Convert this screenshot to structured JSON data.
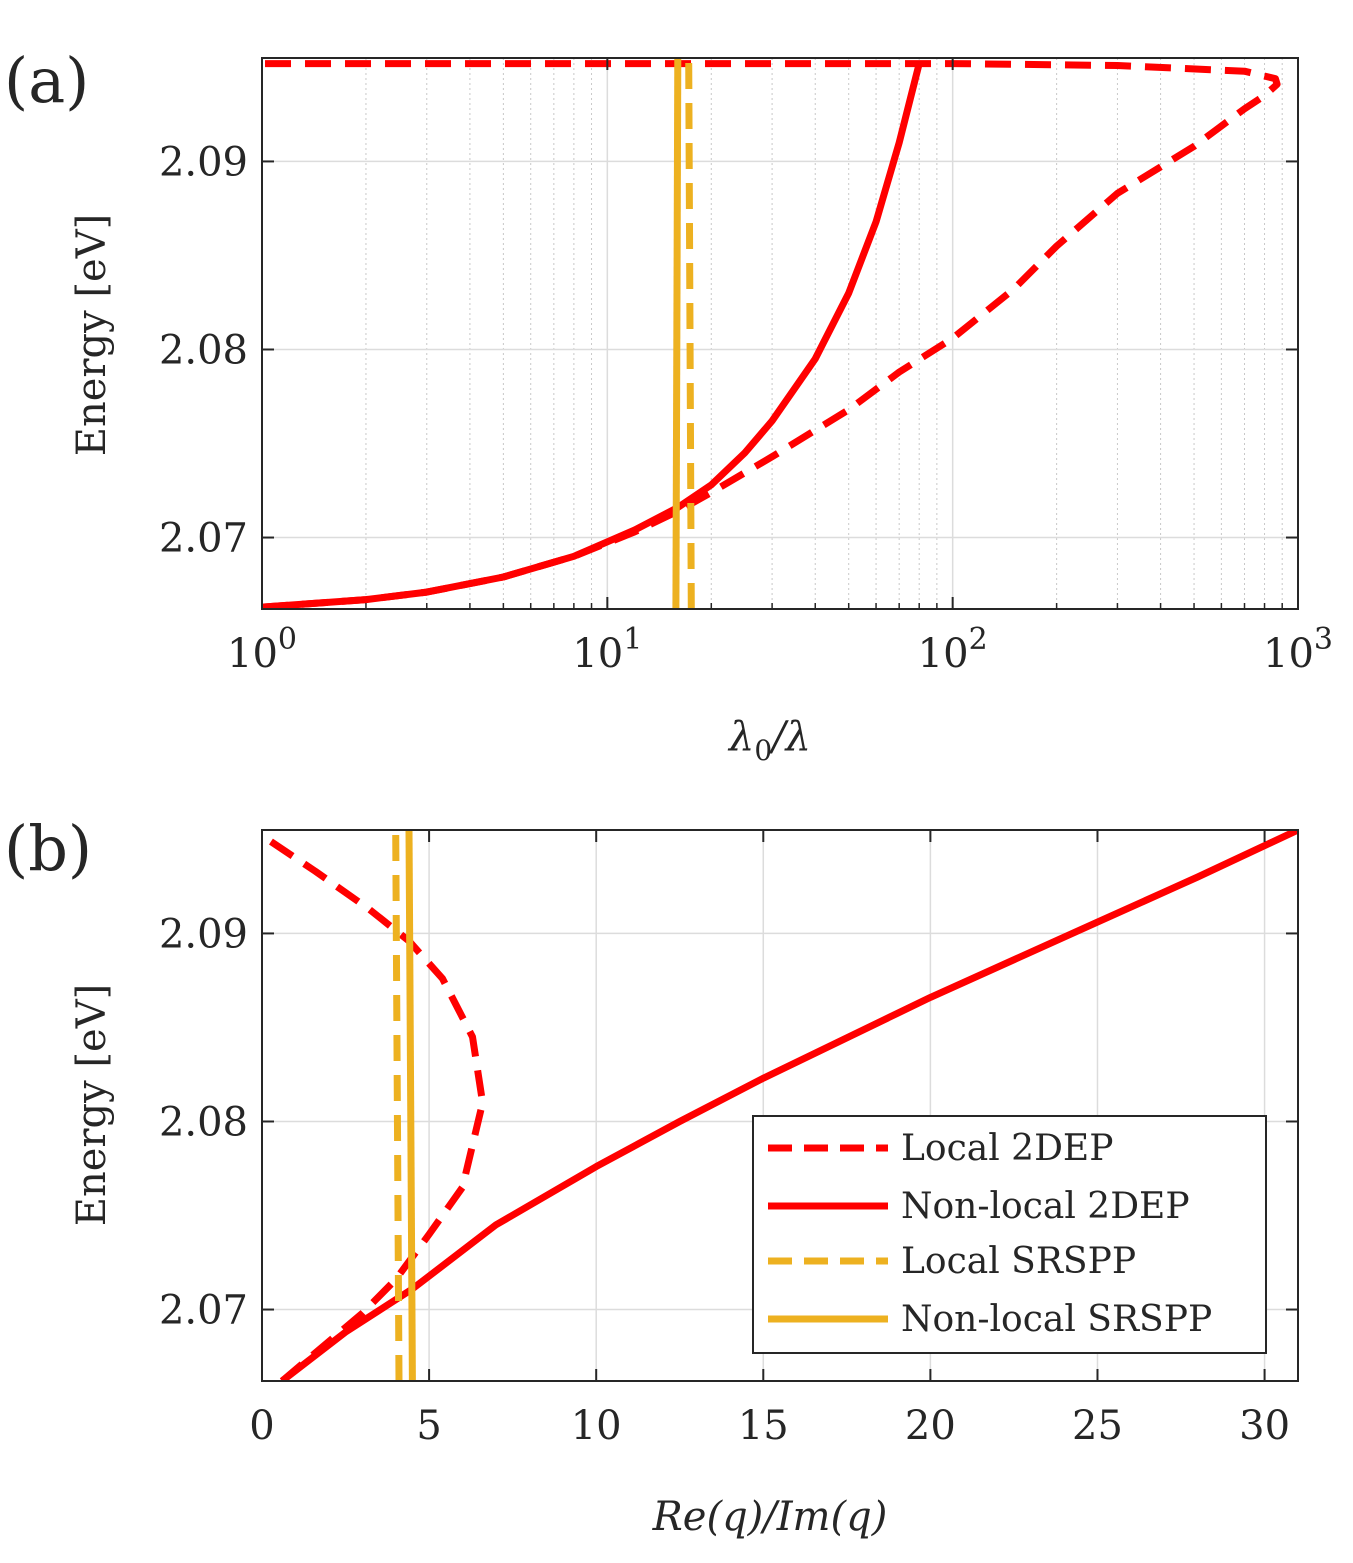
{
  "figure_labels": {
    "a": "(a)",
    "b": "(b)"
  },
  "chart_data": [
    {
      "panel": "a",
      "type": "line",
      "xscale": "log",
      "xlim": [
        1,
        1000
      ],
      "ylim": [
        2.0662,
        2.0955
      ],
      "grid": true,
      "xlabel": "λ₀/λ",
      "xlabel_main": "λ",
      "xlabel_sub": "0",
      "xlabel_tail": "/λ",
      "ylabel": "Energy [eV]",
      "x_ticks": [
        {
          "value": 1,
          "base": "10",
          "exp": "0"
        },
        {
          "value": 10,
          "base": "10",
          "exp": "1"
        },
        {
          "value": 100,
          "base": "10",
          "exp": "2"
        },
        {
          "value": 1000,
          "base": "10",
          "exp": "3"
        }
      ],
      "y_ticks": [
        {
          "value": 2.07,
          "label": "2.07"
        },
        {
          "value": 2.08,
          "label": "2.08"
        },
        {
          "value": 2.09,
          "label": "2.09"
        }
      ],
      "series": [
        {
          "name": "Local 2DEP",
          "color": "#ff0000",
          "dash": "dashed",
          "points": [
            [
              1,
              2.0663
            ],
            [
              2,
              2.0667
            ],
            [
              3,
              2.0671
            ],
            [
              5,
              2.0679
            ],
            [
              8,
              2.069
            ],
            [
              12,
              2.0703
            ],
            [
              16,
              2.0714
            ],
            [
              20,
              2.0724
            ],
            [
              30,
              2.0743
            ],
            [
              50,
              2.0768
            ],
            [
              70,
              2.0788
            ],
            [
              100,
              2.0806
            ],
            [
              150,
              2.0832
            ],
            [
              200,
              2.0855
            ],
            [
              300,
              2.0883
            ],
            [
              500,
              2.0908
            ],
            [
              700,
              2.0928
            ],
            [
              800,
              2.0935
            ],
            [
              870,
              2.0941
            ],
            [
              860,
              2.0944
            ],
            [
              700,
              2.0948
            ],
            [
              300,
              2.0951
            ],
            [
              100,
              2.0952
            ],
            [
              1,
              2.0952
            ]
          ]
        },
        {
          "name": "Non-local 2DEP",
          "color": "#ff0000",
          "dash": "solid",
          "points": [
            [
              1,
              2.0663
            ],
            [
              2,
              2.0667
            ],
            [
              3,
              2.0671
            ],
            [
              5,
              2.0679
            ],
            [
              8,
              2.069
            ],
            [
              12,
              2.0704
            ],
            [
              16,
              2.0716
            ],
            [
              20,
              2.0728
            ],
            [
              25,
              2.0745
            ],
            [
              30,
              2.0762
            ],
            [
              40,
              2.0795
            ],
            [
              50,
              2.083
            ],
            [
              60,
              2.0868
            ],
            [
              70,
              2.091
            ],
            [
              80,
              2.0952
            ]
          ]
        },
        {
          "name": "Local SRSPP",
          "color": "#EDB120",
          "dash": "dashed",
          "points": [
            [
              17.5,
              2.0662
            ],
            [
              17.2,
              2.0955
            ]
          ]
        },
        {
          "name": "Non-local SRSPP",
          "color": "#EDB120",
          "dash": "solid",
          "points": [
            [
              15.8,
              2.0662
            ],
            [
              16.0,
              2.0955
            ]
          ]
        }
      ]
    },
    {
      "panel": "b",
      "type": "line",
      "xscale": "linear",
      "xlim": [
        0,
        31
      ],
      "ylim": [
        2.0662,
        2.0955
      ],
      "grid": true,
      "xlabel": "Re(q)/Im(q)",
      "ylabel": "Energy [eV]",
      "x_ticks": [
        {
          "value": 0,
          "label": "0"
        },
        {
          "value": 5,
          "label": "5"
        },
        {
          "value": 10,
          "label": "10"
        },
        {
          "value": 15,
          "label": "15"
        },
        {
          "value": 20,
          "label": "20"
        },
        {
          "value": 25,
          "label": "25"
        },
        {
          "value": 30,
          "label": "30"
        }
      ],
      "y_ticks": [
        {
          "value": 2.07,
          "label": "2.07"
        },
        {
          "value": 2.08,
          "label": "2.08"
        },
        {
          "value": 2.09,
          "label": "2.09"
        }
      ],
      "legend": {
        "position": "bottom-right",
        "entries": [
          "Local 2DEP",
          "Non-local 2DEP",
          "Local SRSPP",
          "Non-local SRSPP"
        ]
      },
      "series": [
        {
          "name": "Local 2DEP",
          "color": "#ff0000",
          "dash": "dashed",
          "points": [
            [
              0.6,
              2.0662
            ],
            [
              2,
              2.0683
            ],
            [
              3,
              2.0698
            ],
            [
              4,
              2.0716
            ],
            [
              5,
              2.074
            ],
            [
              6,
              2.0765
            ],
            [
              6.6,
              2.081
            ],
            [
              6.3,
              2.0845
            ],
            [
              5.4,
              2.0876
            ],
            [
              4.4,
              2.0896
            ],
            [
              3.2,
              2.0913
            ],
            [
              1.6,
              2.0933
            ],
            [
              0,
              2.0952
            ]
          ]
        },
        {
          "name": "Non-local 2DEP",
          "color": "#ff0000",
          "dash": "solid",
          "points": [
            [
              0.6,
              2.0662
            ],
            [
              2.5,
              2.0688
            ],
            [
              4.5,
              2.0711
            ],
            [
              7,
              2.0745
            ],
            [
              10,
              2.0776
            ],
            [
              12.5,
              2.08
            ],
            [
              15,
              2.0823
            ],
            [
              20,
              2.0866
            ],
            [
              25,
              2.0906
            ],
            [
              28,
              2.093
            ],
            [
              31,
              2.0955
            ]
          ]
        },
        {
          "name": "Local SRSPP",
          "color": "#EDB120",
          "dash": "dashed",
          "points": [
            [
              4.1,
              2.0662
            ],
            [
              4.0,
              2.0955
            ]
          ]
        },
        {
          "name": "Non-local SRSPP",
          "color": "#EDB120",
          "dash": "solid",
          "points": [
            [
              4.5,
              2.0662
            ],
            [
              4.4,
              2.0955
            ]
          ]
        }
      ]
    }
  ]
}
